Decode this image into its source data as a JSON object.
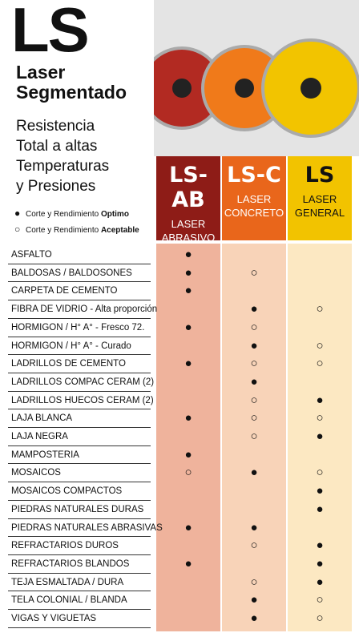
{
  "header": {
    "title": "LS",
    "subtitle": [
      "Laser",
      "Segmentado"
    ],
    "description": [
      "Resistencia",
      "Total a altas",
      "Temperaturas",
      "y Presiones"
    ],
    "legend": [
      {
        "symbol": "●",
        "text": "Corte y Rendimiento",
        "emphasis": "Optimo"
      },
      {
        "symbol": "○",
        "text": "Corte y Rendimiento",
        "emphasis": "Aceptable"
      }
    ]
  },
  "columns": [
    {
      "code": "LS-AB",
      "line1": "LASER",
      "line2": "ABRASIVO"
    },
    {
      "code": "LS-C",
      "line1": "LASER",
      "line2": "CONCRETO"
    },
    {
      "code": "LS",
      "line1": "LASER",
      "line2": "GENERAL"
    }
  ],
  "table": {
    "rows": [
      [
        "ASFALTO",
        "●",
        null,
        null
      ],
      [
        "BALDOSAS / BALDOSONES",
        "●",
        "○",
        null
      ],
      [
        "CARPETA DE CEMENTO",
        "●",
        null,
        null
      ],
      [
        "FIBRA DE VIDRIO - Alta proporción",
        null,
        "●",
        "○"
      ],
      [
        "HORMIGON / H° A° - Fresco 72.",
        "●",
        "○",
        null
      ],
      [
        "HORMIGON / H° A° - Curado",
        null,
        "●",
        "○"
      ],
      [
        "LADRILLOS DE CEMENTO",
        "●",
        "○",
        "○"
      ],
      [
        "LADRILLOS COMPAC CERAM (2)",
        null,
        "●",
        null
      ],
      [
        "LADRILLOS HUECOS CERAM (2)",
        null,
        "○",
        "●"
      ],
      [
        "LAJA BLANCA",
        "●",
        "○",
        "○"
      ],
      [
        "LAJA NEGRA",
        null,
        "○",
        "●"
      ],
      [
        "MAMPOSTERIA",
        "●",
        null,
        null
      ],
      [
        "MOSAICOS",
        "○",
        "●",
        "○"
      ],
      [
        "MOSAICOS COMPACTOS",
        null,
        null,
        "●"
      ],
      [
        "PIEDRAS NATURALES DURAS",
        null,
        null,
        "●"
      ],
      [
        "PIEDRAS NATURALES ABRASIVAS",
        "●",
        "●",
        null
      ],
      [
        "REFRACTARIOS DUROS",
        null,
        "○",
        "●"
      ],
      [
        "REFRACTARIOS BLANDOS",
        "●",
        null,
        "●"
      ],
      [
        "TEJA ESMALTADA / DURA",
        null,
        "○",
        "●"
      ],
      [
        "TELA COLONIAL / BLANDA",
        null,
        "●",
        "○"
      ],
      [
        "VIGAS Y VIGUETAS",
        null,
        "●",
        "○"
      ]
    ]
  }
}
